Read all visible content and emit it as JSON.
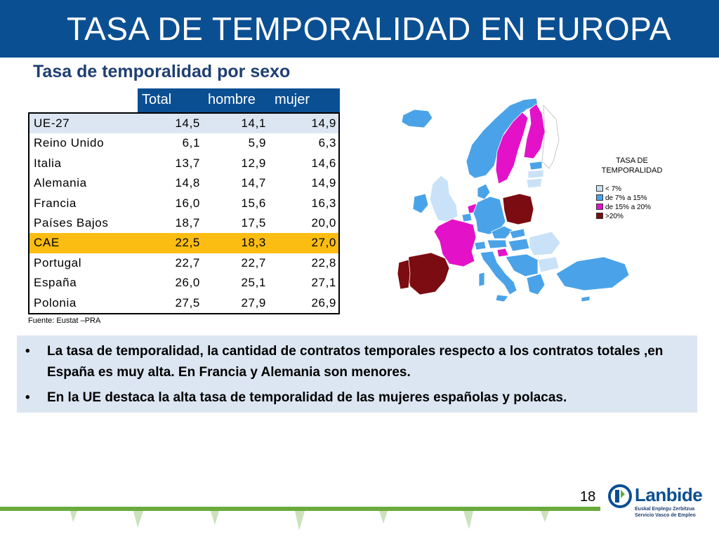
{
  "header": {
    "title": "TASA DE TEMPORALIDAD EN EUROPA"
  },
  "section": {
    "subtitle": "Tasa de temporalidad por sexo"
  },
  "table": {
    "columns": [
      "Total",
      "hombre",
      "mujer"
    ],
    "rows": [
      {
        "name": "UE-27",
        "total": "14,5",
        "hombre": "14,1",
        "mujer": "14,9"
      },
      {
        "name": "Reino Unido",
        "total": "6,1",
        "hombre": "5,9",
        "mujer": "6,3"
      },
      {
        "name": "Italia",
        "total": "13,7",
        "hombre": "12,9",
        "mujer": "14,6"
      },
      {
        "name": "Alemania",
        "total": "14,8",
        "hombre": "14,7",
        "mujer": "14,9"
      },
      {
        "name": "Francia",
        "total": "16,0",
        "hombre": "15,6",
        "mujer": "16,3"
      },
      {
        "name": "Países Bajos",
        "total": "18,7",
        "hombre": "17,5",
        "mujer": "20,0"
      },
      {
        "name": "CAE",
        "total": "22,5",
        "hombre": "18,3",
        "mujer": "27,0"
      },
      {
        "name": "Portugal",
        "total": "22,7",
        "hombre": "22,7",
        "mujer": "22,8"
      },
      {
        "name": "España",
        "total": "26,0",
        "hombre": "25,1",
        "mujer": "27,1"
      },
      {
        "name": "Polonia",
        "total": "27,5",
        "hombre": "27,9",
        "mujer": "26,9"
      }
    ],
    "highlight_color": "#fcbd12",
    "first_row_color": "#dce6f2"
  },
  "source": "Fuente: Eustat –PRA",
  "bullets": [
    "La tasa de temporalidad, la cantidad de contratos temporales respecto a los contratos totales ,en España es muy alta. En Francia y Alemania son menores.",
    "En la UE destaca la alta tasa de temporalidad de las mujeres españolas y polacas."
  ],
  "map": {
    "legend_title_1": "TASA DE",
    "legend_title_2": "TEMPORALIDAD",
    "legend": [
      {
        "label": "< 7%",
        "color": "#c9e2f7"
      },
      {
        "label": "de 7% a 15%",
        "color": "#4aa3e8"
      },
      {
        "label": "de 15% a 20%",
        "color": "#e312c8"
      },
      {
        "label": ">20%",
        "color": "#7a0c12"
      }
    ]
  },
  "footer": {
    "page_number": "18",
    "logo_brand": "Lanbide",
    "logo_line_1": "Euskal Enplegu Zerbitzua",
    "logo_line_2": "Servicio Vasco de Empleo",
    "brand_color": "#0b4f93",
    "green": "#6aab3c"
  }
}
